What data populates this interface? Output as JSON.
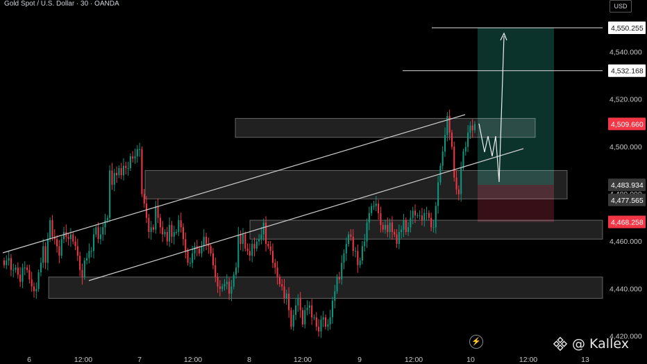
{
  "header": {
    "title": "Gold Spot / U.S. Dollar · 30 · OANDA"
  },
  "axis": {
    "unit_label": "USD"
  },
  "colors": {
    "up": "#089981",
    "down": "#f23645",
    "background": "#000000",
    "zone": "#ffffff",
    "target_zone": "#0e3b34",
    "stop_zone": "#3d1219",
    "current_price": "#f23645"
  },
  "chart_data": {
    "type": "candlestick",
    "title": "Gold Spot / U.S. Dollar · 30 · OANDA",
    "y_axis": {
      "unit": "USD",
      "ylim": [
        4412,
        4556
      ],
      "ticks": [
        "4,420.000",
        "4,440.000",
        "4,460.000",
        "4,480.000",
        "4,500.000",
        "4,520.000",
        "4,540.000"
      ]
    },
    "x_axis": {
      "ticks": [
        "6",
        "12:00",
        "7",
        "12:00",
        "8",
        "12:00",
        "9",
        "12:00",
        "10",
        "12:00",
        "13"
      ]
    },
    "price_labels": [
      {
        "value": 4550.255,
        "text": "4,550.255",
        "style": "white"
      },
      {
        "value": 4532.168,
        "text": "4,532.168",
        "style": "white"
      },
      {
        "value": 4509.66,
        "text": "4,509.660",
        "style": "red"
      },
      {
        "value": 4483.934,
        "text": "4,483.934",
        "style": "gray"
      },
      {
        "value": 4477.565,
        "text": "4,477.565",
        "style": "gray"
      },
      {
        "value": 4468.258,
        "text": "4,468.258",
        "style": "red"
      }
    ],
    "zones": [
      {
        "low": 4504,
        "high": 4512
      },
      {
        "low": 4478,
        "high": 4490
      },
      {
        "low": 4461,
        "high": 4469
      },
      {
        "low": 4436,
        "high": 4445
      }
    ],
    "trade_box": {
      "entry": 4483.934,
      "target": 4550.255,
      "stop": 4468.258
    },
    "ohlc_path": [
      4452,
      4450,
      4452,
      4453,
      4448,
      4448,
      4449,
      4446,
      4443,
      4449,
      4449,
      4448,
      4444,
      4441,
      4439,
      4440,
      4447,
      4451,
      4458,
      4451,
      4461,
      4469,
      4462,
      4461,
      4458,
      4454,
      4461,
      4464,
      4462,
      4461,
      4463,
      4460,
      4458,
      4454,
      4448,
      4445,
      4452,
      4453,
      4456,
      4456,
      4463,
      4466,
      4461,
      4463,
      4466,
      4469,
      4470,
      4490,
      4484,
      4489,
      4488,
      4491,
      4488,
      4492,
      4491,
      4491,
      4496,
      4495,
      4496,
      4499,
      4499,
      4480,
      4476,
      4470,
      4464,
      4466,
      4465,
      4475,
      4470,
      4466,
      4463,
      4464,
      4460,
      4467,
      4462,
      4464,
      4464,
      4469,
      4466,
      4461,
      4456,
      4451,
      4451,
      4455,
      4458,
      4457,
      4455,
      4458,
      4462,
      4459,
      4458,
      4455,
      4450,
      4445,
      4441,
      4440,
      4441,
      4442,
      4443,
      4438,
      4441,
      4446,
      4449,
      4463,
      4459,
      4463,
      4457,
      4456,
      4454,
      4459,
      4457,
      4460,
      4461,
      4463,
      4468,
      4459,
      4458,
      4456,
      4451,
      4449,
      4445,
      4442,
      4441,
      4436,
      4438,
      4431,
      4424,
      4429,
      4433,
      4436,
      4431,
      4425,
      4431,
      4432,
      4433,
      4428,
      4428,
      4424,
      4422,
      4427,
      4428,
      4424,
      4425,
      4428,
      4435,
      4439,
      4445,
      4444,
      4451,
      4455,
      4459,
      4463,
      4462,
      4456,
      4456,
      4450,
      4452,
      4458,
      4460,
      4468,
      4472,
      4475,
      4475,
      4476,
      4472,
      4467,
      4465,
      4467,
      4464,
      4468,
      4464,
      4463,
      4459,
      4464,
      4465,
      4469,
      4464,
      4466,
      4470,
      4473,
      4471,
      4471,
      4471,
      4469,
      4472,
      4472,
      4470,
      4466,
      4466,
      4475,
      4485,
      4492,
      4498,
      4505,
      4513,
      4506,
      4500,
      4487,
      4482,
      4480,
      4491,
      4498,
      4500,
      4506,
      4509,
      4507,
      4509.66
    ]
  }
}
